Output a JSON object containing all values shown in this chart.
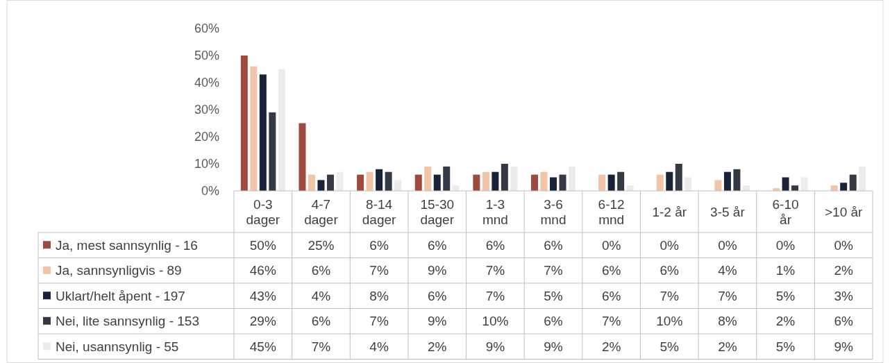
{
  "chart_data": {
    "type": "bar",
    "categories": [
      "0-3 dager",
      "4-7 dager",
      "8-14 dager",
      "15-30 dager",
      "1-3 mnd",
      "3-6 mnd",
      "6-12 mnd",
      "1-2 år",
      "3-5 år",
      "6-10 år",
      ">10 år"
    ],
    "ylim": [
      0,
      60
    ],
    "yticks": [
      {
        "value": 0,
        "label": "0%"
      },
      {
        "value": 10,
        "label": "10%"
      },
      {
        "value": 20,
        "label": "20%"
      },
      {
        "value": 30,
        "label": "30%"
      },
      {
        "value": 40,
        "label": "40%"
      },
      {
        "value": 50,
        "label": "50%"
      },
      {
        "value": 60,
        "label": "60%"
      }
    ],
    "legend": "left",
    "grid": false,
    "series": [
      {
        "name": "Ja, mest sannsynlig - 16",
        "color": "#9e4a3e",
        "values": [
          50,
          25,
          6,
          6,
          6,
          6,
          0,
          0,
          0,
          0,
          0
        ],
        "value_labels": [
          "50%",
          "25%",
          "6%",
          "6%",
          "6%",
          "6%",
          "0%",
          "0%",
          "0%",
          "0%",
          "0%"
        ]
      },
      {
        "name": "Ja, sannsynligvis - 89",
        "color": "#f2c4a8",
        "values": [
          46,
          6,
          7,
          9,
          7,
          7,
          6,
          6,
          4,
          1,
          2
        ],
        "value_labels": [
          "46%",
          "6%",
          "7%",
          "9%",
          "7%",
          "7%",
          "6%",
          "6%",
          "4%",
          "1%",
          "2%"
        ]
      },
      {
        "name": "Uklart/helt åpent - 197",
        "color": "#1a2238",
        "values": [
          43,
          4,
          8,
          6,
          7,
          5,
          6,
          7,
          7,
          5,
          3
        ],
        "value_labels": [
          "43%",
          "4%",
          "8%",
          "6%",
          "7%",
          "5%",
          "6%",
          "7%",
          "7%",
          "5%",
          "3%"
        ]
      },
      {
        "name": "Nei, lite sannsynlig - 153",
        "color": "#333a46",
        "values": [
          29,
          6,
          7,
          9,
          10,
          6,
          7,
          10,
          8,
          2,
          6
        ],
        "value_labels": [
          "29%",
          "6%",
          "7%",
          "9%",
          "10%",
          "6%",
          "7%",
          "10%",
          "8%",
          "2%",
          "6%"
        ]
      },
      {
        "name": "Nei, usannsynlig - 55",
        "color": "#ececec",
        "values": [
          45,
          7,
          4,
          2,
          9,
          9,
          2,
          5,
          2,
          5,
          9
        ],
        "value_labels": [
          "45%",
          "7%",
          "4%",
          "2%",
          "9%",
          "9%",
          "2%",
          "5%",
          "2%",
          "5%",
          "9%"
        ]
      }
    ]
  }
}
